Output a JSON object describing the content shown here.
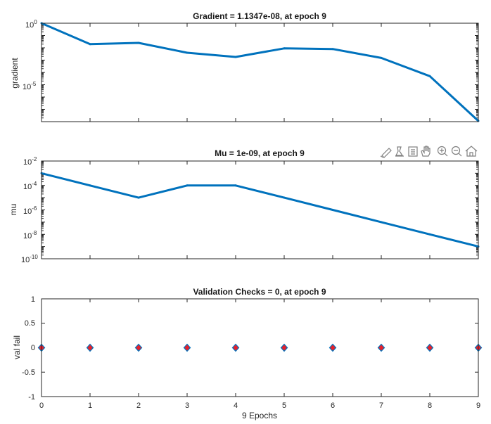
{
  "chart_data": [
    {
      "type": "line",
      "title": "Gradient = 1.1347e-08, at epoch 9",
      "ylabel": "gradient",
      "xlabel": "",
      "yscale": "log",
      "x": [
        0,
        1,
        2,
        3,
        4,
        5,
        6,
        7,
        8,
        9
      ],
      "values": [
        1.0,
        0.02,
        0.025,
        0.004,
        0.0018,
        0.009,
        0.008,
        0.0015,
        5e-05,
        1.1347e-08
      ],
      "xlim": [
        0,
        9
      ],
      "ylim": [
        1e-08,
        1
      ],
      "yticks": [
        {
          "base": "10",
          "exp": "0"
        },
        {
          "base": "10",
          "exp": "-5"
        }
      ],
      "line_color": "#0072BD",
      "grid": false
    },
    {
      "type": "line",
      "title": "Mu = 1e-09, at epoch 9",
      "ylabel": "mu",
      "xlabel": "",
      "yscale": "log",
      "x": [
        0,
        1,
        2,
        3,
        4,
        5,
        6,
        7,
        8,
        9
      ],
      "values": [
        0.001,
        0.0001,
        1e-05,
        0.0001,
        0.0001,
        1e-05,
        1e-06,
        1e-07,
        1e-08,
        1e-09
      ],
      "xlim": [
        0,
        9
      ],
      "ylim": [
        1e-10,
        0.01
      ],
      "yticks": [
        {
          "base": "10",
          "exp": "-2"
        },
        {
          "base": "10",
          "exp": "-4"
        },
        {
          "base": "10",
          "exp": "-6"
        },
        {
          "base": "10",
          "exp": "-8"
        },
        {
          "base": "10",
          "exp": "-10"
        }
      ],
      "line_color": "#0072BD",
      "grid": false
    },
    {
      "type": "scatter",
      "title": "Validation Checks = 0, at epoch 9",
      "ylabel": "val fail",
      "xlabel": "9 Epochs",
      "x": [
        0,
        1,
        2,
        3,
        4,
        5,
        6,
        7,
        8,
        9
      ],
      "values": [
        0,
        0,
        0,
        0,
        0,
        0,
        0,
        0,
        0,
        0
      ],
      "xlim": [
        0,
        9
      ],
      "ylim": [
        -1,
        1
      ],
      "yticks": [
        "1",
        "0.5",
        "0",
        "-0.5",
        "-1"
      ],
      "xticks": [
        "0",
        "1",
        "2",
        "3",
        "4",
        "5",
        "6",
        "7",
        "8",
        "9"
      ],
      "marker": "diamond",
      "marker_fill": "#e8202a",
      "marker_edge": "#0072BD",
      "grid": false
    }
  ],
  "toolbar": {
    "icons": [
      "brush-icon",
      "data-tips-icon",
      "legend-icon",
      "pan-hand-icon",
      "zoom-in-icon",
      "zoom-out-icon",
      "home-icon"
    ]
  }
}
